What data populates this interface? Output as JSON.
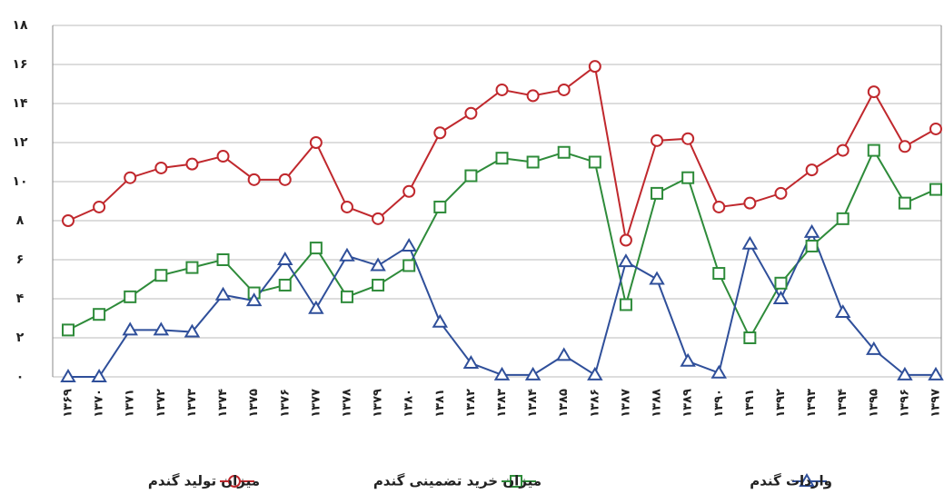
{
  "chart_data": {
    "type": "line",
    "categories": [
      "۱۳۶۹",
      "۱۳۷۰",
      "۱۳۷۱",
      "۱۳۷۲",
      "۱۳۷۳",
      "۱۳۷۴",
      "۱۳۷۵",
      "۱۳۷۶",
      "۱۳۷۷",
      "۱۳۷۸",
      "۱۳۷۹",
      "۱۳۸۰",
      "۱۳۸۱",
      "۱۳۸۲",
      "۱۳۸۳",
      "۱۳۸۴",
      "۱۳۸۵",
      "۱۳۸۶",
      "۱۳۸۷",
      "۱۳۸۸",
      "۱۳۸۹",
      "۱۳۹۰",
      "۱۳۹۱",
      "۱۳۹۲",
      "۱۳۹۳",
      "۱۳۹۴",
      "۱۳۹۵",
      "۱۳۹۶",
      "۱۳۹۷"
    ],
    "series": [
      {
        "name": "میزان تولید گندم",
        "color": "#c0282d",
        "marker": "circle",
        "values": [
          8.0,
          8.7,
          10.2,
          10.7,
          10.9,
          11.3,
          10.1,
          10.1,
          12.0,
          8.7,
          8.1,
          9.5,
          12.5,
          13.5,
          14.7,
          14.4,
          14.7,
          15.9,
          7.0,
          12.1,
          12.2,
          8.7,
          8.9,
          9.4,
          10.6,
          11.6,
          14.6,
          11.8,
          12.7
        ]
      },
      {
        "name": "میزان خرید تضمینی گندم",
        "color": "#2e8b3a",
        "marker": "square",
        "values": [
          2.4,
          3.2,
          4.1,
          5.2,
          5.6,
          6.0,
          4.3,
          4.7,
          6.6,
          4.1,
          4.7,
          5.7,
          8.7,
          10.3,
          11.2,
          11.0,
          11.5,
          11.0,
          3.7,
          9.4,
          10.2,
          5.3,
          2.0,
          4.8,
          6.7,
          8.1,
          11.6,
          8.9,
          9.6
        ]
      },
      {
        "name": "واردات گندم",
        "color": "#2f4f9a",
        "marker": "triangle",
        "values": [
          0,
          0,
          2.4,
          2.4,
          2.3,
          4.2,
          3.9,
          6.0,
          3.5,
          6.2,
          5.7,
          6.7,
          2.8,
          0.7,
          0.1,
          0.1,
          1.1,
          0.1,
          5.9,
          5.0,
          0.8,
          0.2,
          6.8,
          4.0,
          7.4,
          3.3,
          1.4,
          0.1,
          0.1
        ]
      }
    ],
    "ylim": [
      0,
      18
    ],
    "yticks": [
      {
        "value": 0,
        "label": "۰"
      },
      {
        "value": 2,
        "label": "۲"
      },
      {
        "value": 4,
        "label": "۴"
      },
      {
        "value": 6,
        "label": "۶"
      },
      {
        "value": 8,
        "label": "۸"
      },
      {
        "value": 10,
        "label": "۱۰"
      },
      {
        "value": 12,
        "label": "۱۲"
      },
      {
        "value": 14,
        "label": "۱۴"
      },
      {
        "value": 16,
        "label": "۱۶"
      },
      {
        "value": 18,
        "label": "۱۸"
      }
    ],
    "grid": true
  }
}
